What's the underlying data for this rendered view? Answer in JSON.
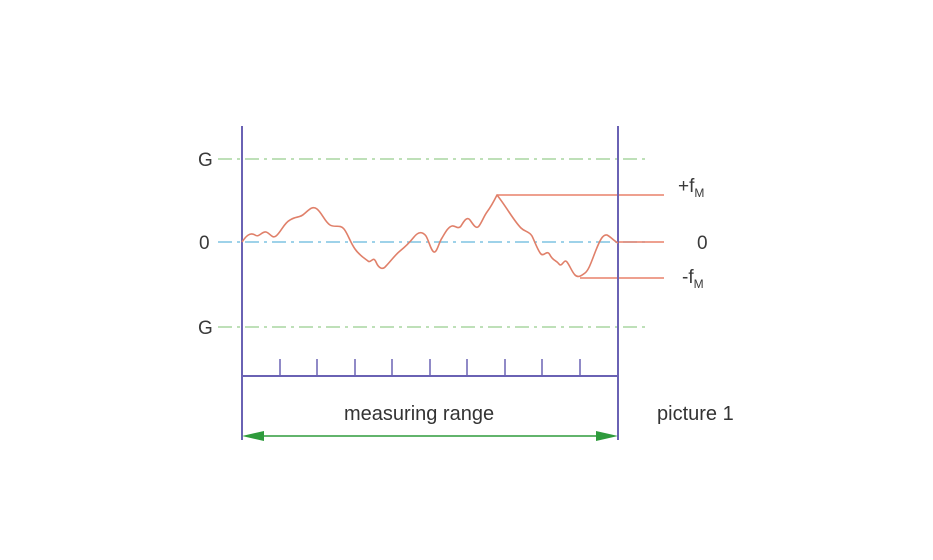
{
  "diagram": {
    "labels": {
      "g_top": "G",
      "zero_left": "0",
      "g_bottom": "G",
      "plus_f_main": "+f",
      "plus_f_sub": "M",
      "zero_right": "0",
      "minus_f_main": "-f",
      "minus_f_sub": "M",
      "measuring_range": "measuring range",
      "picture": "picture 1"
    },
    "colors": {
      "frame": "#6a62b4",
      "tolerance_line": "#a8d6a0",
      "zero_line": "#7fc4e2",
      "profile": "#e0806a",
      "peak_lines": "#e8806a",
      "dimension_arrow": "#2e9b3c",
      "scale": "#6a62b4",
      "text": "#3a3a3a"
    }
  }
}
